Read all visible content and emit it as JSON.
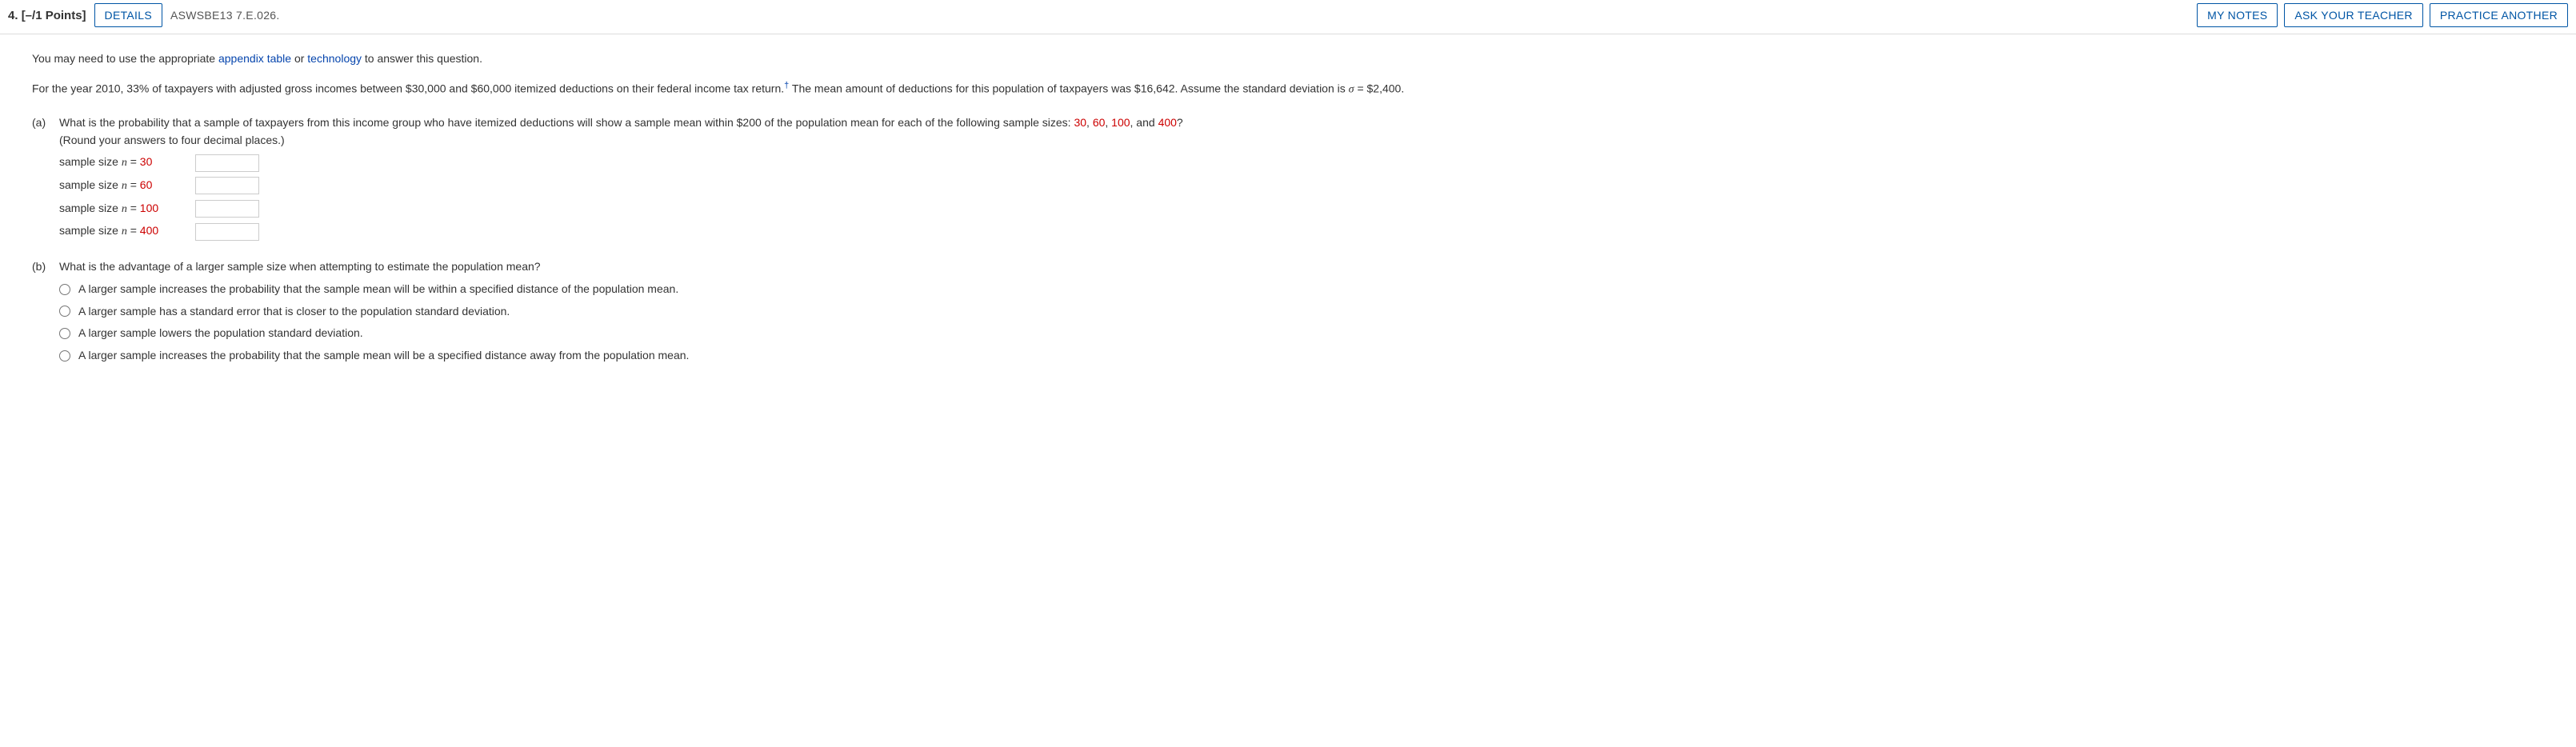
{
  "header": {
    "question_number": "4.",
    "points": "[–/1 Points]",
    "details_label": "DETAILS",
    "source": "ASWSBE13 7.E.026.",
    "my_notes": "MY NOTES",
    "ask_teacher": "ASK YOUR TEACHER",
    "practice": "PRACTICE ANOTHER"
  },
  "intro": {
    "prefix": "You may need to use the appropriate ",
    "link1": "appendix table",
    "mid": " or ",
    "link2": "technology",
    "suffix": " to answer this question."
  },
  "problem": {
    "line1_a": "For the year 2010, 33% of taxpayers with adjusted gross incomes between $30,000 and $60,000 itemized deductions on their federal income tax return.",
    "dagger": "†",
    "line1_b": " The mean amount of deductions for this population of taxpayers was $16,642. Assume the standard deviation is ",
    "sigma": "σ",
    "line1_c": " = $2,400."
  },
  "partA": {
    "label": "(a)",
    "q_prefix": "What is the probability that a sample of taxpayers from this income group who have itemized deductions will show a sample mean within $200 of the population mean for each of the following sample sizes: ",
    "s30": "30",
    "comma1": ", ",
    "s60": "60",
    "comma2": ", ",
    "s100": "100",
    "comma3": ", and ",
    "s400": "400",
    "qmark": "?",
    "round_note": "(Round your answers to four decimal places.)",
    "row_prefix": "sample size ",
    "nvar": "n",
    "eq": " = ",
    "sizes": [
      "30",
      "60",
      "100",
      "400"
    ]
  },
  "partB": {
    "label": "(b)",
    "question": "What is the advantage of a larger sample size when attempting to estimate the population mean?",
    "options": [
      "A larger sample increases the probability that the sample mean will be within a specified distance of the population mean.",
      "A larger sample has a standard error that is closer to the population standard deviation.",
      "A larger sample lowers the population standard deviation.",
      "A larger sample increases the probability that the sample mean will be a specified distance away from the population mean."
    ]
  }
}
